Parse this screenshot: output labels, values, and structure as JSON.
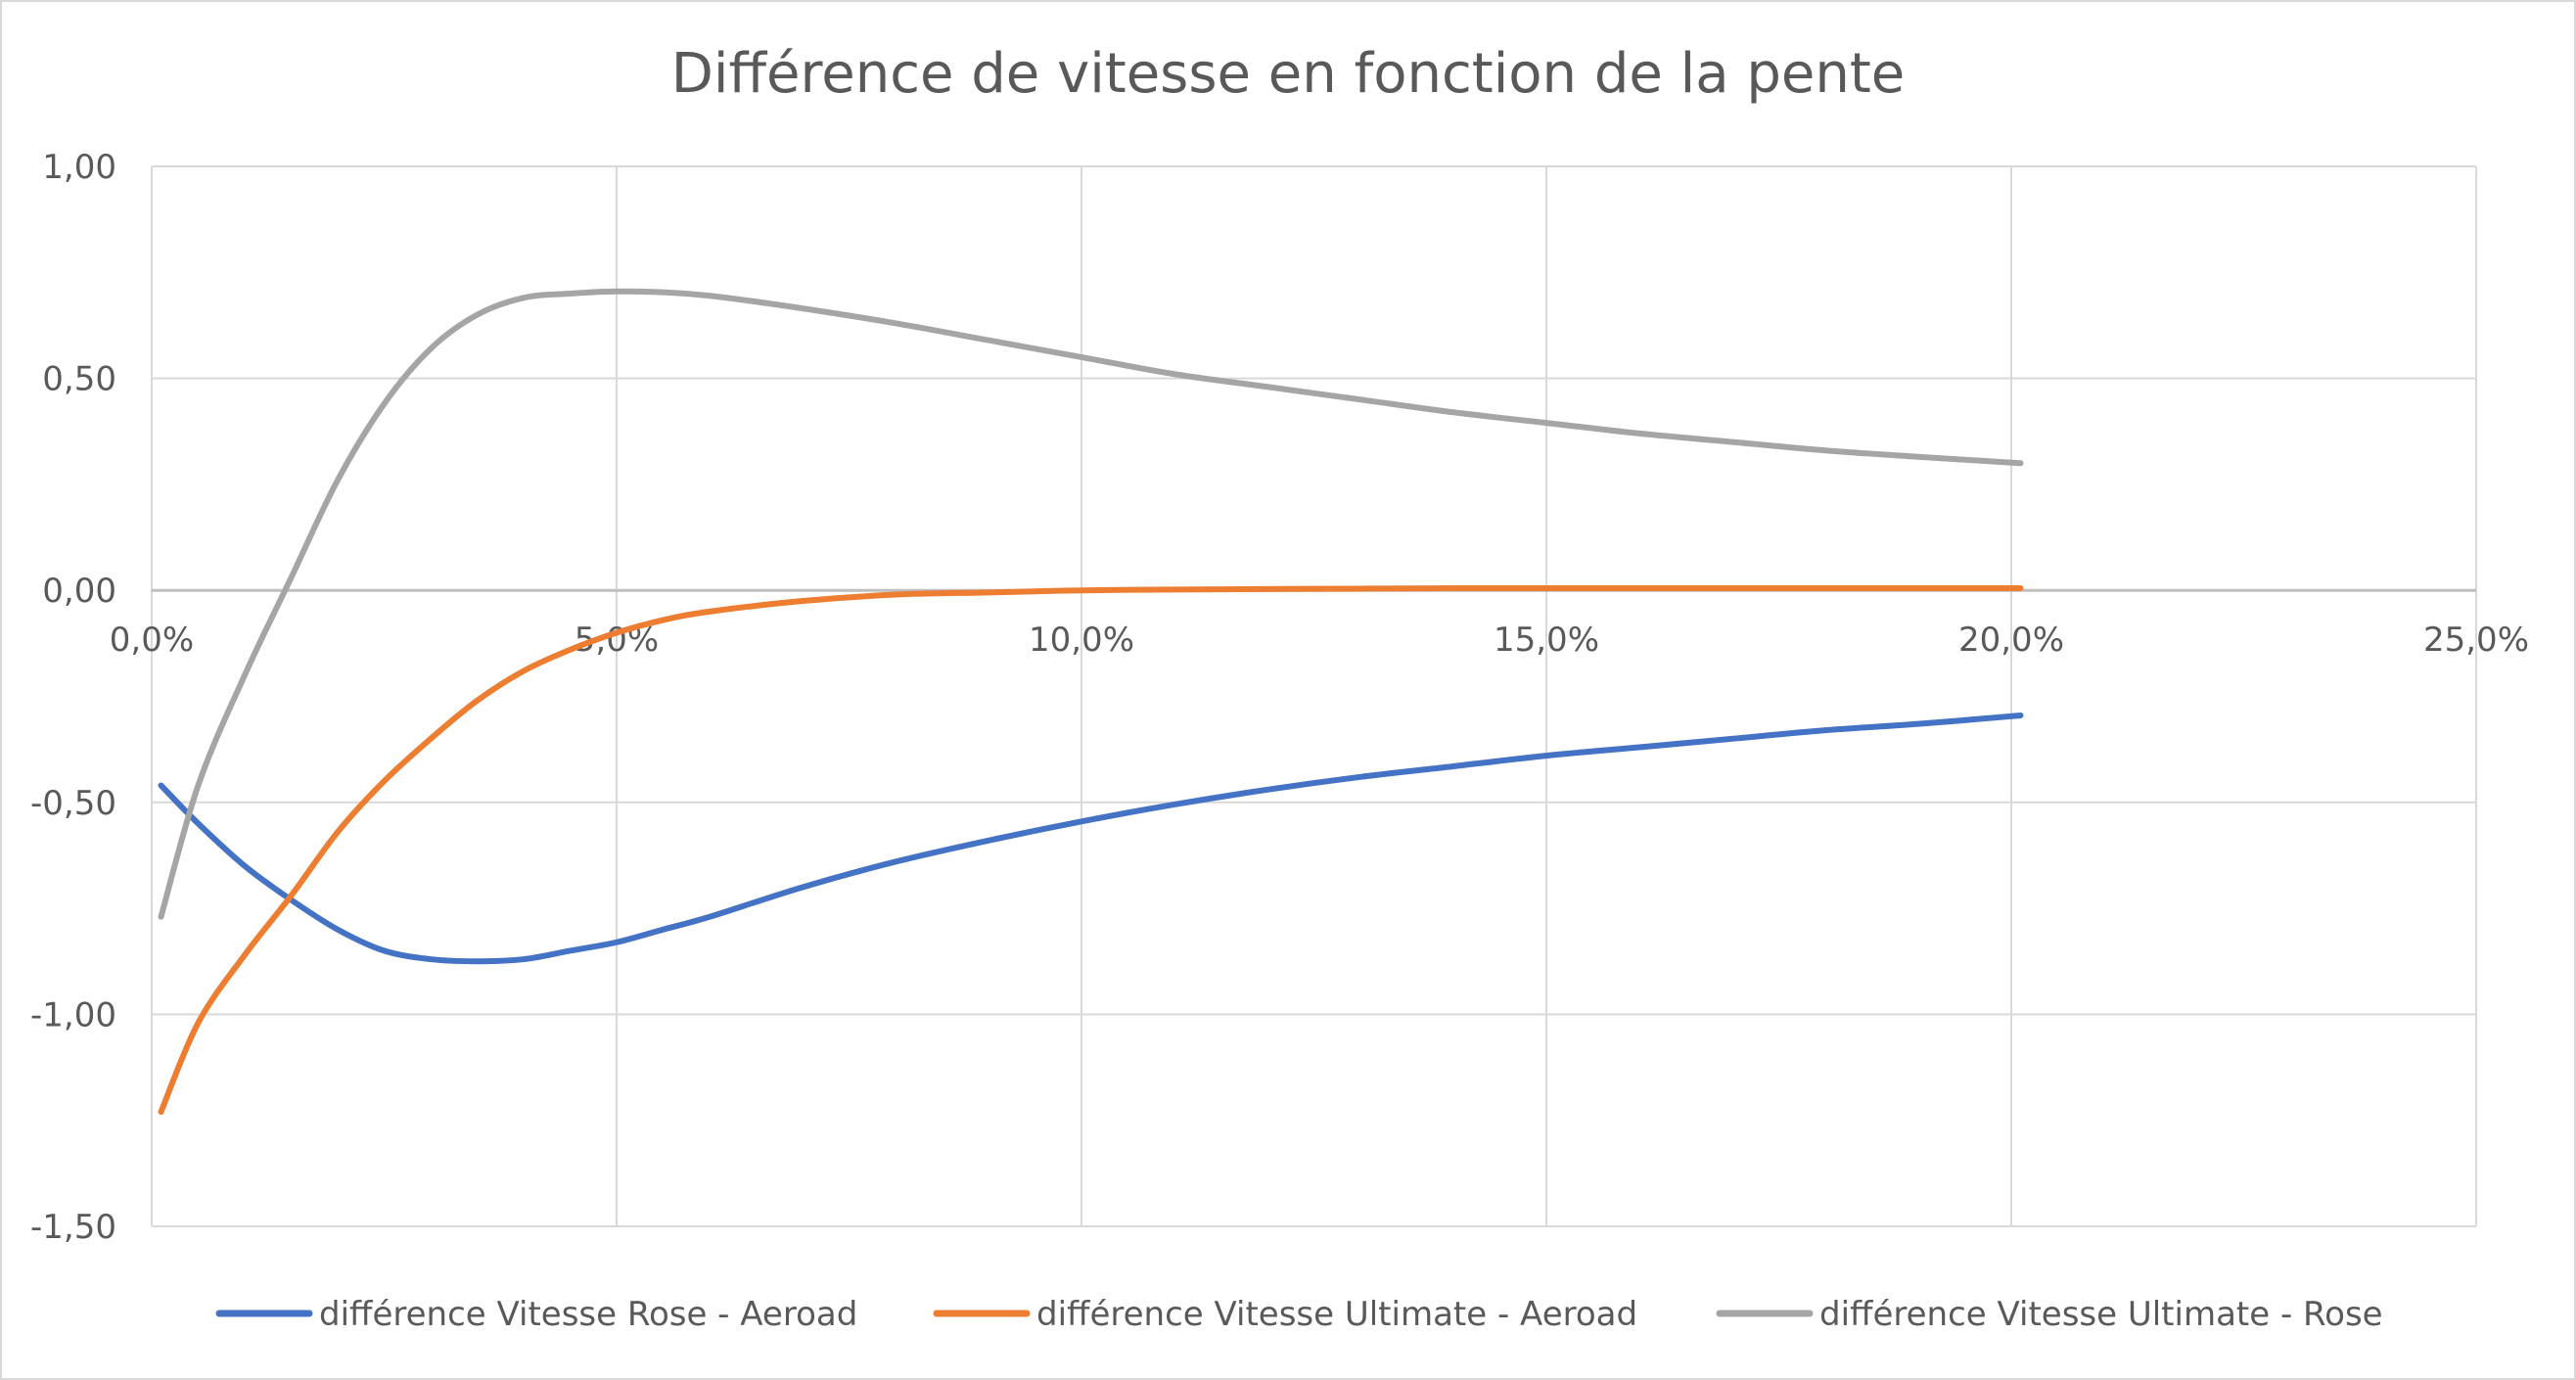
{
  "chart_data": {
    "type": "line",
    "title": "Différence de vitesse en fonction de la pente",
    "xlabel": "",
    "ylabel": "",
    "xlim": [
      0,
      25
    ],
    "ylim": [
      -1.5,
      1
    ],
    "x_ticks": [
      0,
      5,
      10,
      15,
      20,
      25
    ],
    "x_tick_labels": [
      "0,0%",
      "5,0%",
      "10,0%",
      "15,0%",
      "20,0%",
      "25,0%"
    ],
    "y_ticks": [
      1,
      0.5,
      0,
      -0.5,
      -1,
      -1.5
    ],
    "y_tick_labels": [
      "1,00",
      "0,50",
      "0,00",
      "-0,50",
      "-1,00",
      "-1,50"
    ],
    "grid": true,
    "legend_position": "bottom",
    "x": [
      0.1,
      0.5,
      1,
      1.5,
      2,
      2.5,
      3,
      3.5,
      4,
      4.5,
      5,
      5.5,
      6,
      7,
      8,
      9,
      10,
      11,
      12,
      13,
      14,
      15,
      16,
      17,
      18,
      19,
      20.1
    ],
    "series": [
      {
        "name": "différence Vitesse Rose - Aeroad",
        "color": "#4472C4",
        "values": [
          -0.46,
          -0.55,
          -0.65,
          -0.73,
          -0.8,
          -0.85,
          -0.87,
          -0.875,
          -0.87,
          -0.85,
          -0.83,
          -0.8,
          -0.77,
          -0.7,
          -0.64,
          -0.59,
          -0.545,
          -0.505,
          -0.47,
          -0.44,
          -0.415,
          -0.39,
          -0.37,
          -0.35,
          -0.33,
          -0.315,
          -0.295
        ]
      },
      {
        "name": "différence Vitesse Ultimate - Aeroad",
        "color": "#ED7D31",
        "values": [
          -1.23,
          -1.02,
          -0.86,
          -0.72,
          -0.57,
          -0.45,
          -0.35,
          -0.26,
          -0.19,
          -0.14,
          -0.1,
          -0.07,
          -0.05,
          -0.025,
          -0.01,
          -0.005,
          0.0,
          0.002,
          0.003,
          0.004,
          0.005,
          0.005,
          0.005,
          0.005,
          0.005,
          0.005,
          0.005
        ]
      },
      {
        "name": "différence Vitesse Ultimate - Rose",
        "color": "#A5A5A5",
        "values": [
          -0.77,
          -0.46,
          -0.2,
          0.03,
          0.26,
          0.44,
          0.57,
          0.65,
          0.69,
          0.7,
          0.705,
          0.703,
          0.695,
          0.665,
          0.63,
          0.59,
          0.55,
          0.51,
          0.48,
          0.45,
          0.42,
          0.395,
          0.37,
          0.35,
          0.33,
          0.315,
          0.3
        ]
      }
    ]
  }
}
